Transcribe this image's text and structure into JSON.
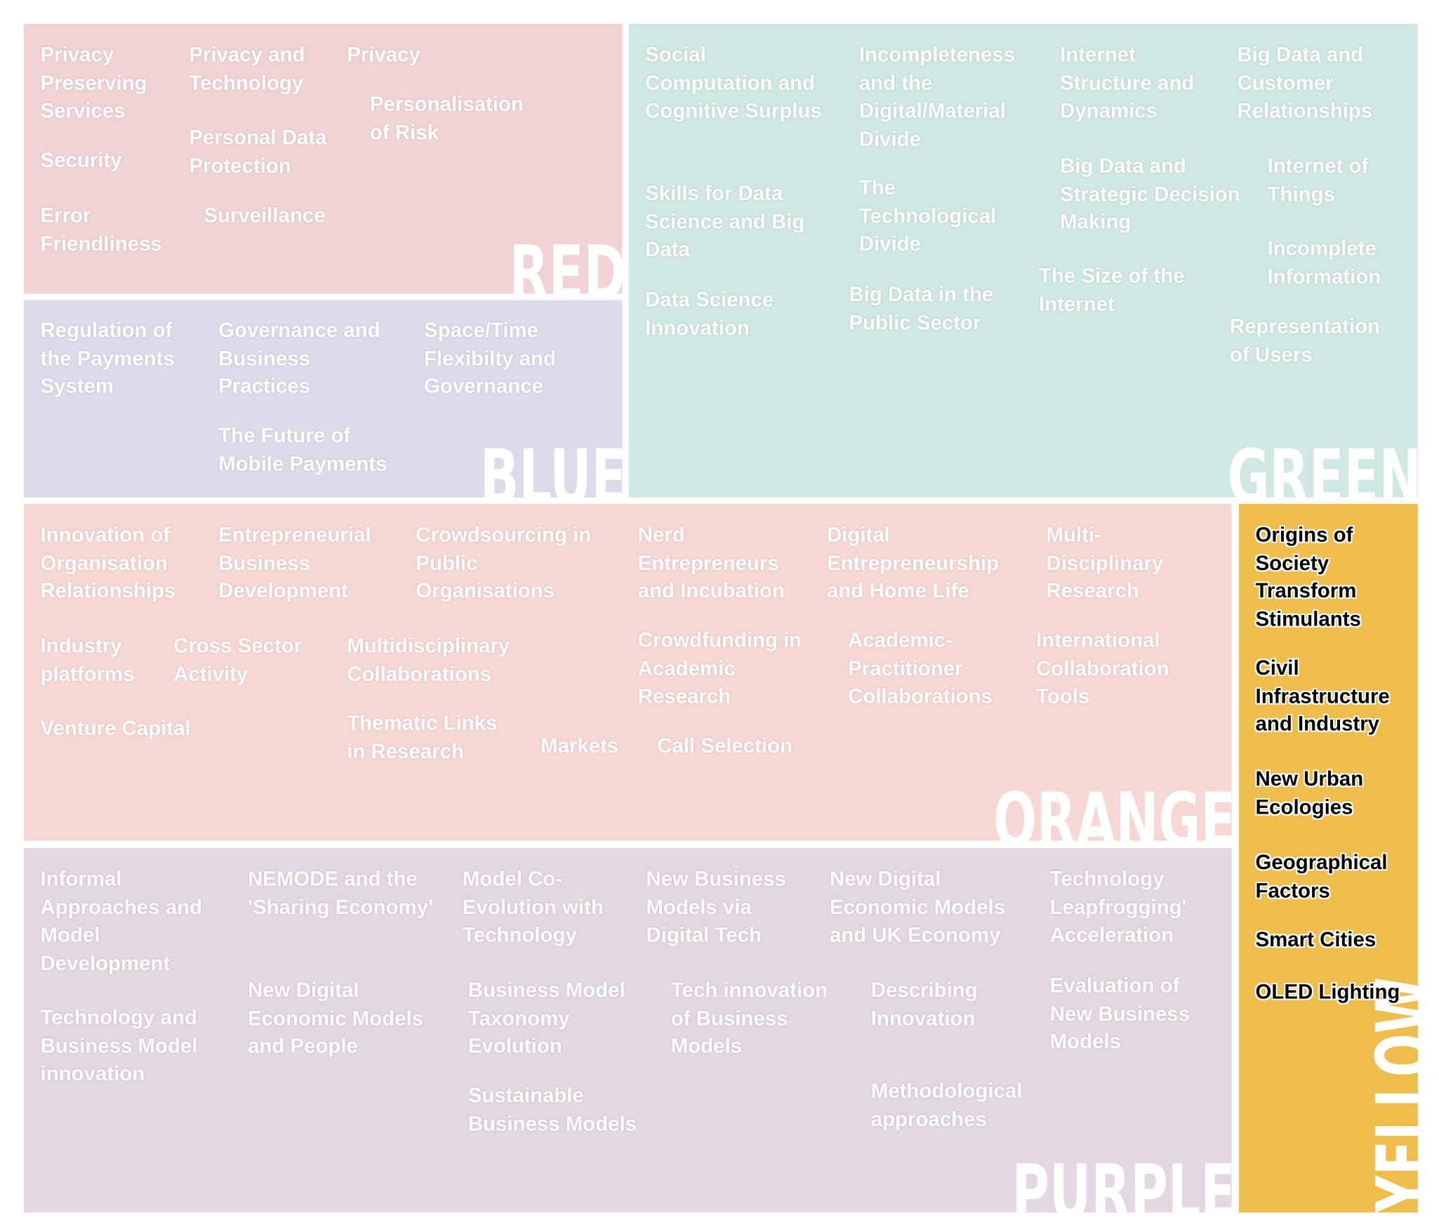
{
  "sections": [
    {
      "label": "RED",
      "color": "#f1d3d6",
      "items": [
        "Privacy Preserving Services",
        "Security",
        "Error Friendliness",
        "Privacy and Technology",
        "Personal Data Protection",
        "Surveillance",
        "Privacy",
        "Personalisation of Risk"
      ]
    },
    {
      "label": "BLUE",
      "color": "#dddbe9",
      "items": [
        "Regulation of the Payments System",
        "Governance and Business Practices",
        "The Future of Mobile Payments",
        "Space/Time Flexibilty and Governance"
      ]
    },
    {
      "label": "GREEN",
      "color": "#cfe8e3",
      "items": [
        "Social Computation and Cognitive Surplus",
        "Skills for Data Science and Big Data",
        "Data Science Innovation",
        "Incompleteness and the Digital/Material Divide",
        "The Technological Divide",
        "Big Data in the Public Sector",
        "Internet Structure and Dynamics",
        "Big Data and Strategic Decision Making",
        "The Size of the Internet",
        "Big Data and Customer Relationships",
        "Internet of Things",
        "Incomplete Information",
        "Representation of Users"
      ]
    },
    {
      "label": "ORANGE",
      "color": "#f7d7d3",
      "items": [
        "Innovation of Organisation Relationships",
        "Entrepreneurial Business Development",
        "Crowdsourcing in Public Organisations",
        "Nerd Entrepreneurs and Incubation",
        "Digital Entrepreneurship and Home Life",
        "Multi-Disciplinary Research",
        "Industry platforms",
        "Cross Sector Activity",
        "Multidisciplinary Collaborations",
        "Venture Capital",
        "Thematic Links in Research",
        "Markets",
        "Call Selection",
        "Crowdfunding in Academic Research",
        "Academic-Practitioner Collaborations",
        "International Collaboration Tools"
      ]
    },
    {
      "label": "PURPLE",
      "color": "#e3d7e1",
      "items": [
        "Informal Approaches and Model Development",
        "Technology and Business Model innovation",
        "NEMODE and the 'Sharing Economy'",
        "New Digital Economic Models and People",
        "Model Co-Evolution with Technology",
        "Business Model Taxonomy Evolution",
        "Sustainable Business Models",
        "New Business Models via Digital Tech",
        "Tech innovation of Business Models",
        "New Digital Economic Models and UK Economy",
        "Describing Innovation",
        "Methodological approaches",
        "Technology Leapfrogging' Acceleration",
        "Evaluation of New Business Models"
      ]
    },
    {
      "label": "YELLOW",
      "color": "#efbd4c",
      "items": [
        "Origins of Society Transform Stimulants",
        "Civil Infrastructure and Industry",
        "New Urban Ecologies",
        "Geographical Factors",
        "Smart Cities",
        "OLED Lighting"
      ]
    }
  ]
}
